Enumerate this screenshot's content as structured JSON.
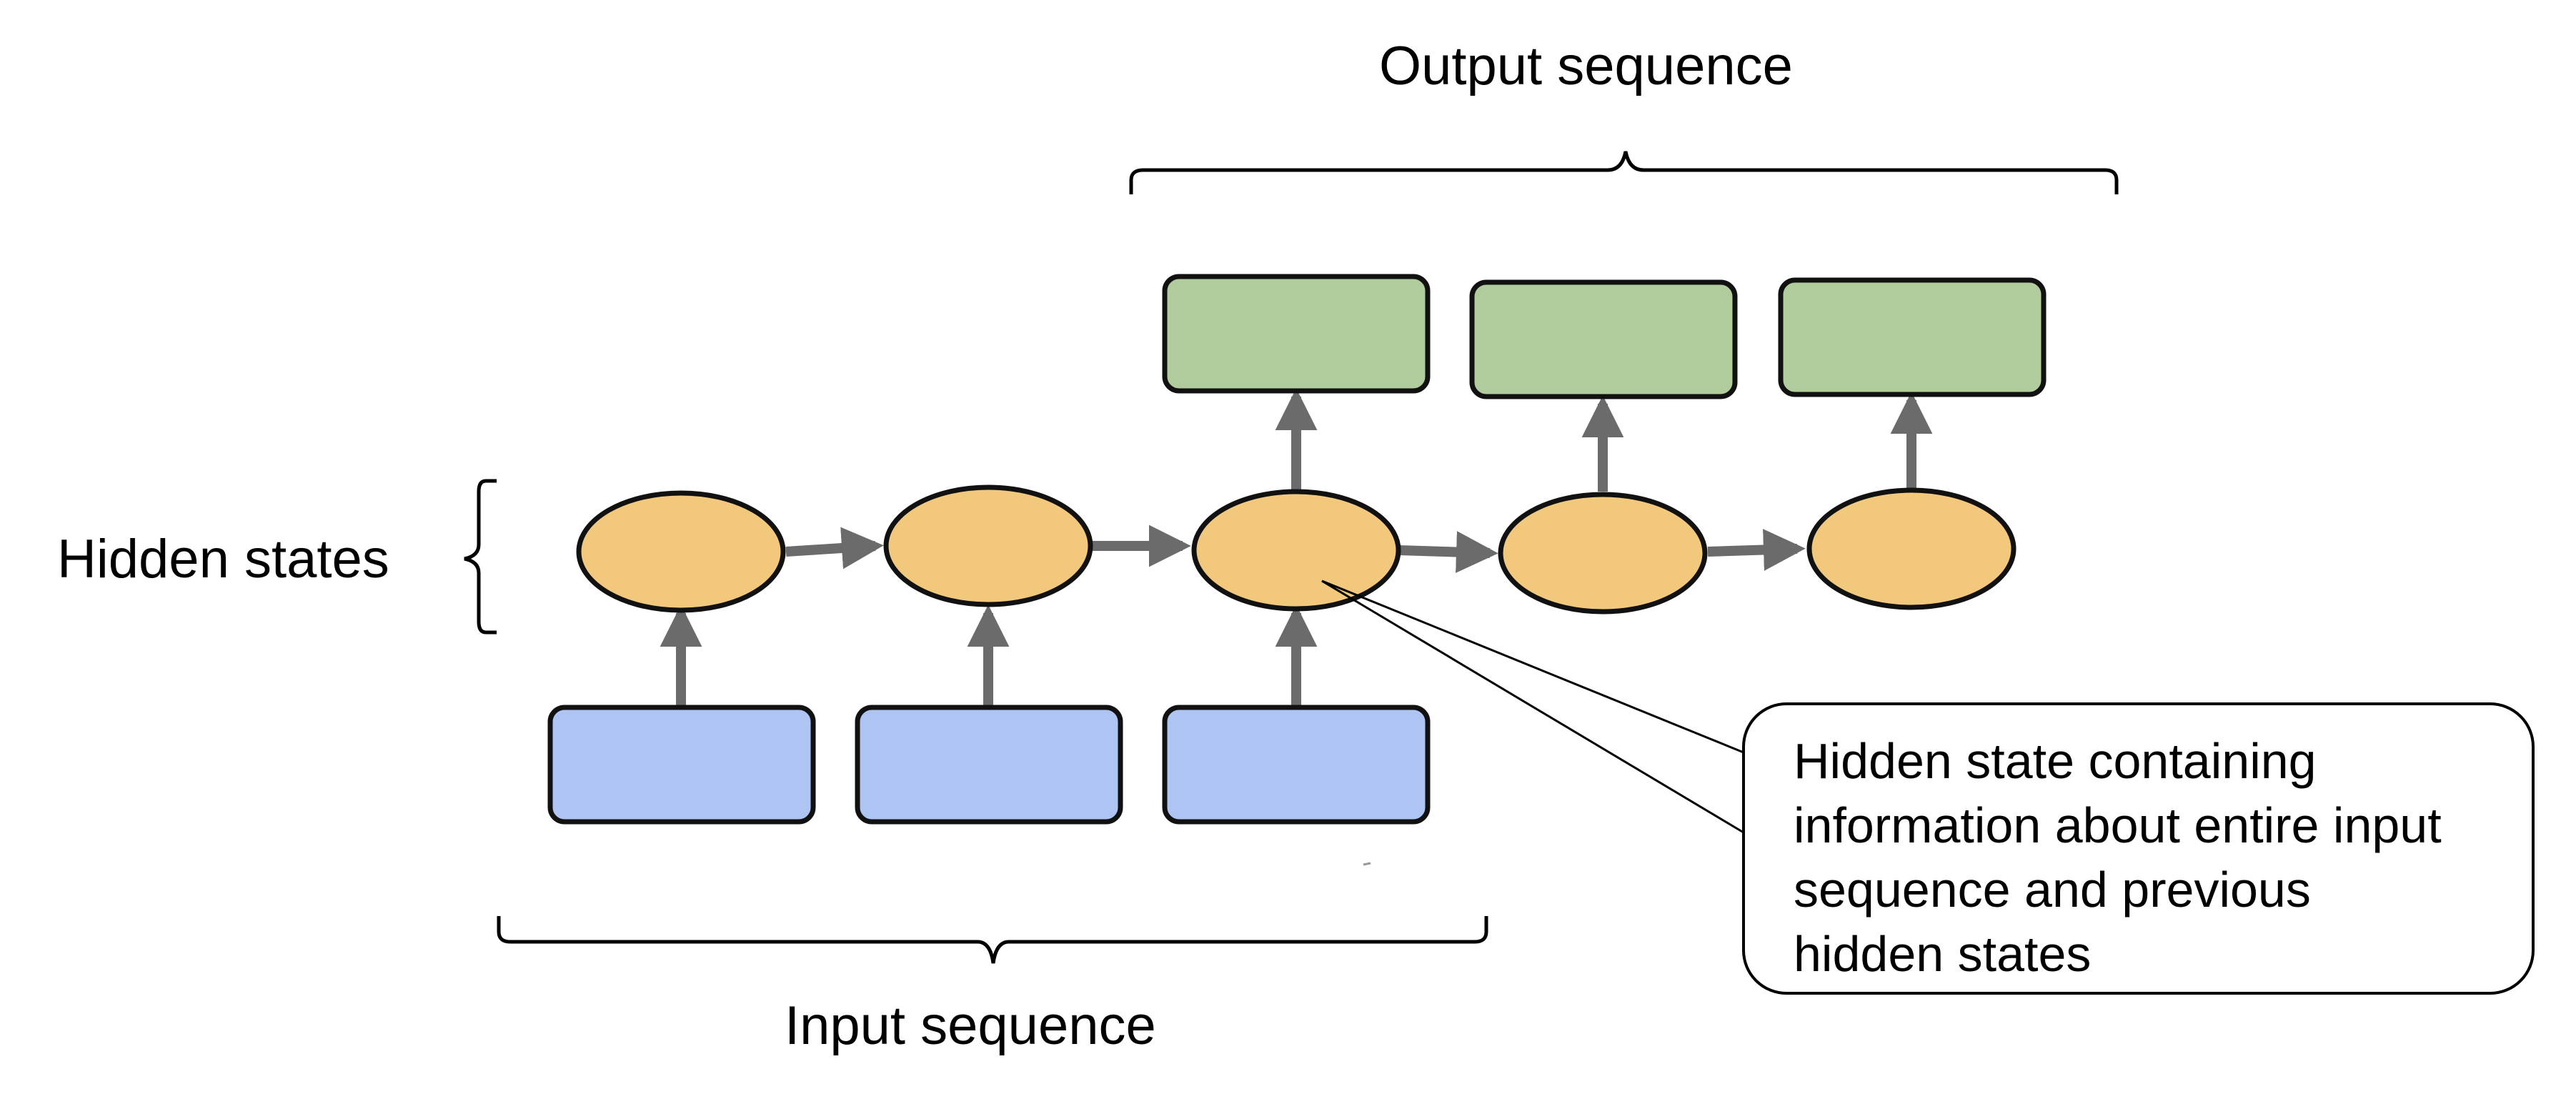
{
  "labels": {
    "output_sequence": "Output sequence",
    "input_sequence": "Input sequence",
    "hidden_states": "Hidden states"
  },
  "callout": {
    "lines": [
      "Hidden state containing",
      "information about entire input",
      "sequence and previous",
      "hidden states"
    ]
  },
  "colors": {
    "input_box": "#aec4f2",
    "hidden_state": "#f2c87c",
    "output_box": "#b1cc9c",
    "arrow": "#6b6b6b",
    "outline": "#111111"
  },
  "structure": {
    "input_count": 3,
    "hidden_count": 5,
    "output_count": 3
  }
}
